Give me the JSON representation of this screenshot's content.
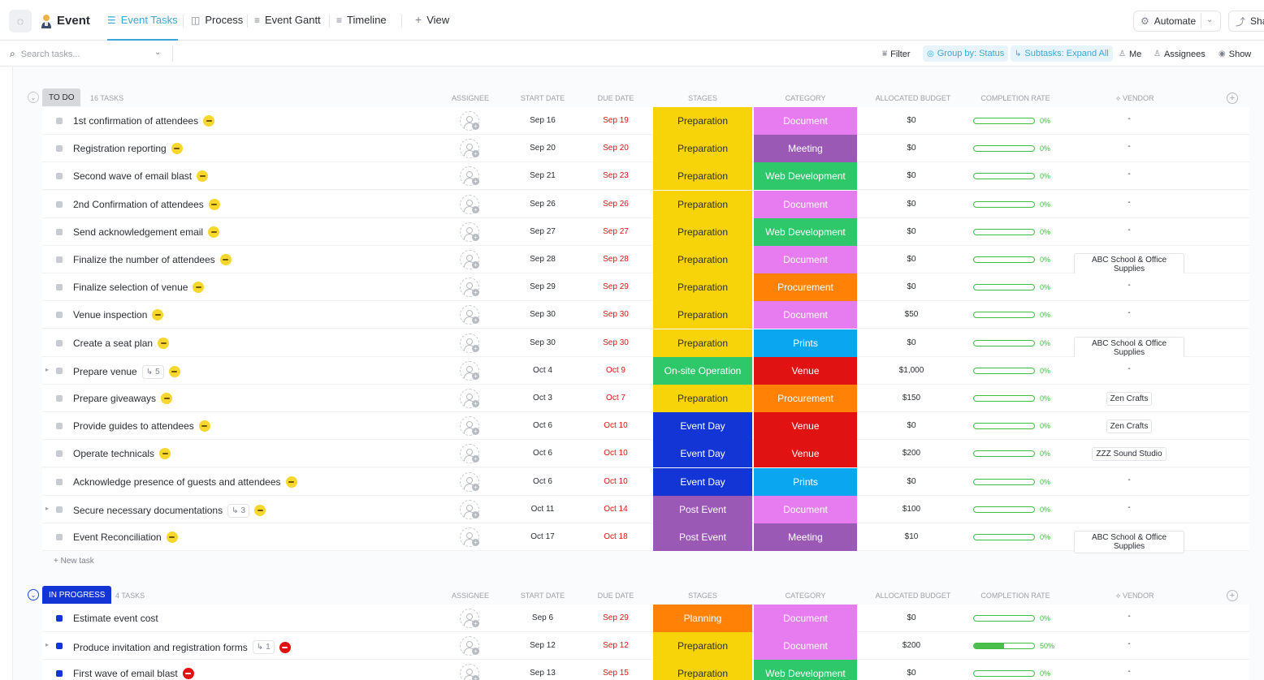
{
  "header": {
    "workspace_title": "Event",
    "tabs": [
      {
        "label": "Event Tasks",
        "icon": "list-icon"
      },
      {
        "label": "Process",
        "icon": "board-icon"
      },
      {
        "label": "Event Gantt",
        "icon": "gantt-icon"
      },
      {
        "label": "Timeline",
        "icon": "timeline-icon"
      }
    ],
    "add_view_label": "View",
    "automate_label": "Automate",
    "share_label": "Share"
  },
  "toolbar": {
    "search_placeholder": "Search tasks...",
    "filter_label": "Filter",
    "group_by_label": "Group by: Status",
    "subtasks_label": "Subtasks: Expand All",
    "me_label": "Me",
    "assignees_label": "Assignees",
    "show_label": "Show"
  },
  "columns": {
    "assignee": "ASSIGNEE",
    "start_date": "START DATE",
    "due_date": "DUE DATE",
    "stages": "STAGES",
    "category": "CATEGORY",
    "budget": "ALLOCATED BUDGET",
    "completion": "COMPLETION RATE",
    "vendor": "VENDOR"
  },
  "colors": {
    "Preparation": "#f7d40a",
    "On-site Operation": "#2ec76a",
    "Event Day": "#1435d6",
    "Post Event": "#9b59b6",
    "Planning": "#ff8207",
    "Document": "#e67cf0",
    "Meeting": "#9b59b6",
    "Web Development": "#2ec76a",
    "Procurement": "#ff8207",
    "Prints": "#0aa7f0",
    "Venue": "#e01212"
  },
  "groups": [
    {
      "status": "TO DO",
      "count_label": "16 TASKS",
      "new_task_label": "+ New task",
      "tasks": [
        {
          "name": "1st confirmation of attendees",
          "start": "Sep 16",
          "due": "Sep 19",
          "stage": "Preparation",
          "category": "Document",
          "budget": "$0",
          "progress": 0,
          "pct": "0%",
          "vendor": "-",
          "priority": "yellow"
        },
        {
          "name": "Registration reporting",
          "start": "Sep 20",
          "due": "Sep 20",
          "stage": "Preparation",
          "category": "Meeting",
          "budget": "$0",
          "progress": 0,
          "pct": "0%",
          "vendor": "-",
          "priority": "yellow"
        },
        {
          "name": "Second wave of email blast",
          "start": "Sep 21",
          "due": "Sep 23",
          "stage": "Preparation",
          "category": "Web Development",
          "budget": "$0",
          "progress": 0,
          "pct": "0%",
          "vendor": "-",
          "priority": "yellow"
        },
        {
          "name": "2nd Confirmation of attendees",
          "start": "Sep 26",
          "due": "Sep 26",
          "stage": "Preparation",
          "category": "Document",
          "budget": "$0",
          "progress": 0,
          "pct": "0%",
          "vendor": "-",
          "priority": "yellow"
        },
        {
          "name": "Send acknowledgement email",
          "start": "Sep 27",
          "due": "Sep 27",
          "stage": "Preparation",
          "category": "Web Development",
          "budget": "$0",
          "progress": 0,
          "pct": "0%",
          "vendor": "-",
          "priority": "yellow"
        },
        {
          "name": "Finalize the number of attendees",
          "start": "Sep 28",
          "due": "Sep 28",
          "stage": "Preparation",
          "category": "Document",
          "budget": "$0",
          "progress": 0,
          "pct": "0%",
          "vendor": "ABC School & Office Supplies",
          "priority": "yellow"
        },
        {
          "name": "Finalize selection of venue",
          "start": "Sep 29",
          "due": "Sep 29",
          "stage": "Preparation",
          "category": "Procurement",
          "budget": "$0",
          "progress": 0,
          "pct": "0%",
          "vendor": "-",
          "priority": "yellow"
        },
        {
          "name": "Venue inspection",
          "start": "Sep 30",
          "due": "Sep 30",
          "stage": "Preparation",
          "category": "Document",
          "budget": "$50",
          "progress": 0,
          "pct": "0%",
          "vendor": "-",
          "priority": "yellow"
        },
        {
          "name": "Create a seat plan",
          "start": "Sep 30",
          "due": "Sep 30",
          "stage": "Preparation",
          "category": "Prints",
          "budget": "$0",
          "progress": 0,
          "pct": "0%",
          "vendor": "ABC School & Office Supplies",
          "priority": "yellow"
        },
        {
          "name": "Prepare venue",
          "subtasks": "5",
          "start": "Oct 4",
          "due": "Oct 9",
          "stage": "On-site Operation",
          "category": "Venue",
          "budget": "$1,000",
          "progress": 0,
          "pct": "0%",
          "vendor": "-",
          "priority": "yellow"
        },
        {
          "name": "Prepare giveaways",
          "start": "Oct 3",
          "due": "Oct 7",
          "stage": "Preparation",
          "category": "Procurement",
          "budget": "$150",
          "progress": 0,
          "pct": "0%",
          "vendor": "Zen Crafts",
          "priority": "yellow"
        },
        {
          "name": "Provide guides to attendees",
          "start": "Oct 6",
          "due": "Oct 10",
          "stage": "Event Day",
          "category": "Venue",
          "budget": "$0",
          "progress": 0,
          "pct": "0%",
          "vendor": "Zen Crafts",
          "priority": "yellow"
        },
        {
          "name": "Operate technicals",
          "start": "Oct 6",
          "due": "Oct 10",
          "stage": "Event Day",
          "category": "Venue",
          "budget": "$200",
          "progress": 0,
          "pct": "0%",
          "vendor": "ZZZ Sound Studio",
          "priority": "yellow"
        },
        {
          "name": "Acknowledge presence of guests and attendees",
          "start": "Oct 6",
          "due": "Oct 10",
          "stage": "Event Day",
          "category": "Prints",
          "budget": "$0",
          "progress": 0,
          "pct": "0%",
          "vendor": "-",
          "priority": "yellow"
        },
        {
          "name": "Secure necessary documentations",
          "subtasks": "3",
          "start": "Oct 11",
          "due": "Oct 14",
          "stage": "Post Event",
          "category": "Document",
          "budget": "$100",
          "progress": 0,
          "pct": "0%",
          "vendor": "-",
          "priority": "yellow"
        },
        {
          "name": "Event Reconciliation",
          "start": "Oct 17",
          "due": "Oct 18",
          "stage": "Post Event",
          "category": "Meeting",
          "budget": "$10",
          "progress": 0,
          "pct": "0%",
          "vendor": "ABC School & Office Supplies",
          "priority": "yellow"
        }
      ]
    },
    {
      "status": "IN PROGRESS",
      "count_label": "4 TASKS",
      "tasks": [
        {
          "name": "Estimate event cost",
          "start": "Sep 6",
          "due": "Sep 29",
          "stage": "Planning",
          "category": "Document",
          "budget": "$0",
          "progress": 0,
          "pct": "0%",
          "vendor": "-",
          "priority": "none"
        },
        {
          "name": "Produce invitation and registration forms",
          "subtasks": "1",
          "start": "Sep 12",
          "due": "Sep 12",
          "stage": "Preparation",
          "category": "Document",
          "budget": "$200",
          "progress": 0.5,
          "pct": "50%",
          "vendor": "-",
          "priority": "red"
        },
        {
          "name": "First wave of email blast",
          "start": "Sep 13",
          "due": "Sep 15",
          "stage": "Preparation",
          "category": "Web Development",
          "budget": "$0",
          "progress": 0,
          "pct": "0%",
          "vendor": "-",
          "priority": "red"
        }
      ]
    }
  ]
}
